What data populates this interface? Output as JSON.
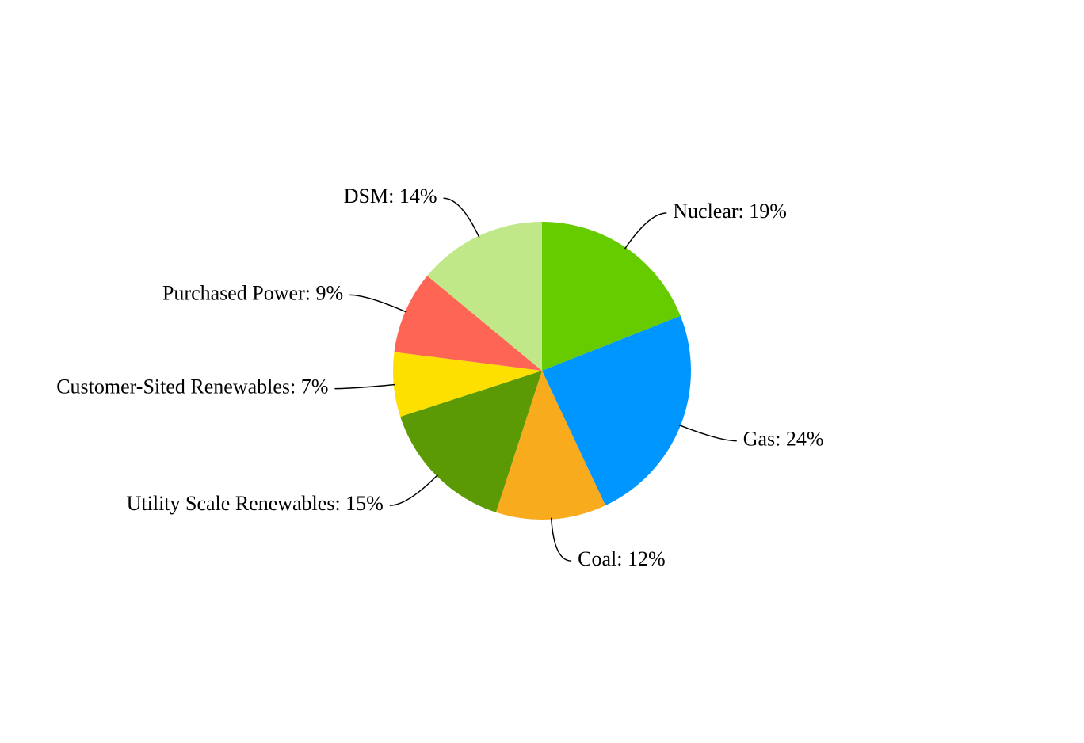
{
  "chart_data": {
    "type": "pie",
    "values": [
      19,
      24,
      12,
      15,
      7,
      9,
      14
    ],
    "value_labels": [
      "Nuclear: 19%",
      "Gas: 24%",
      "Coal: 12%",
      "Utility Scale Renewables: 15%",
      "Customer-Sited Renewables: 7%",
      "Purchased Power: 9%",
      "DSM: 14%"
    ],
    "colors": [
      "#66cc00",
      "#0096ff",
      "#f8ab1c",
      "#5b9a05",
      "#fde000",
      "#fe6555",
      "#c0e888"
    ]
  }
}
